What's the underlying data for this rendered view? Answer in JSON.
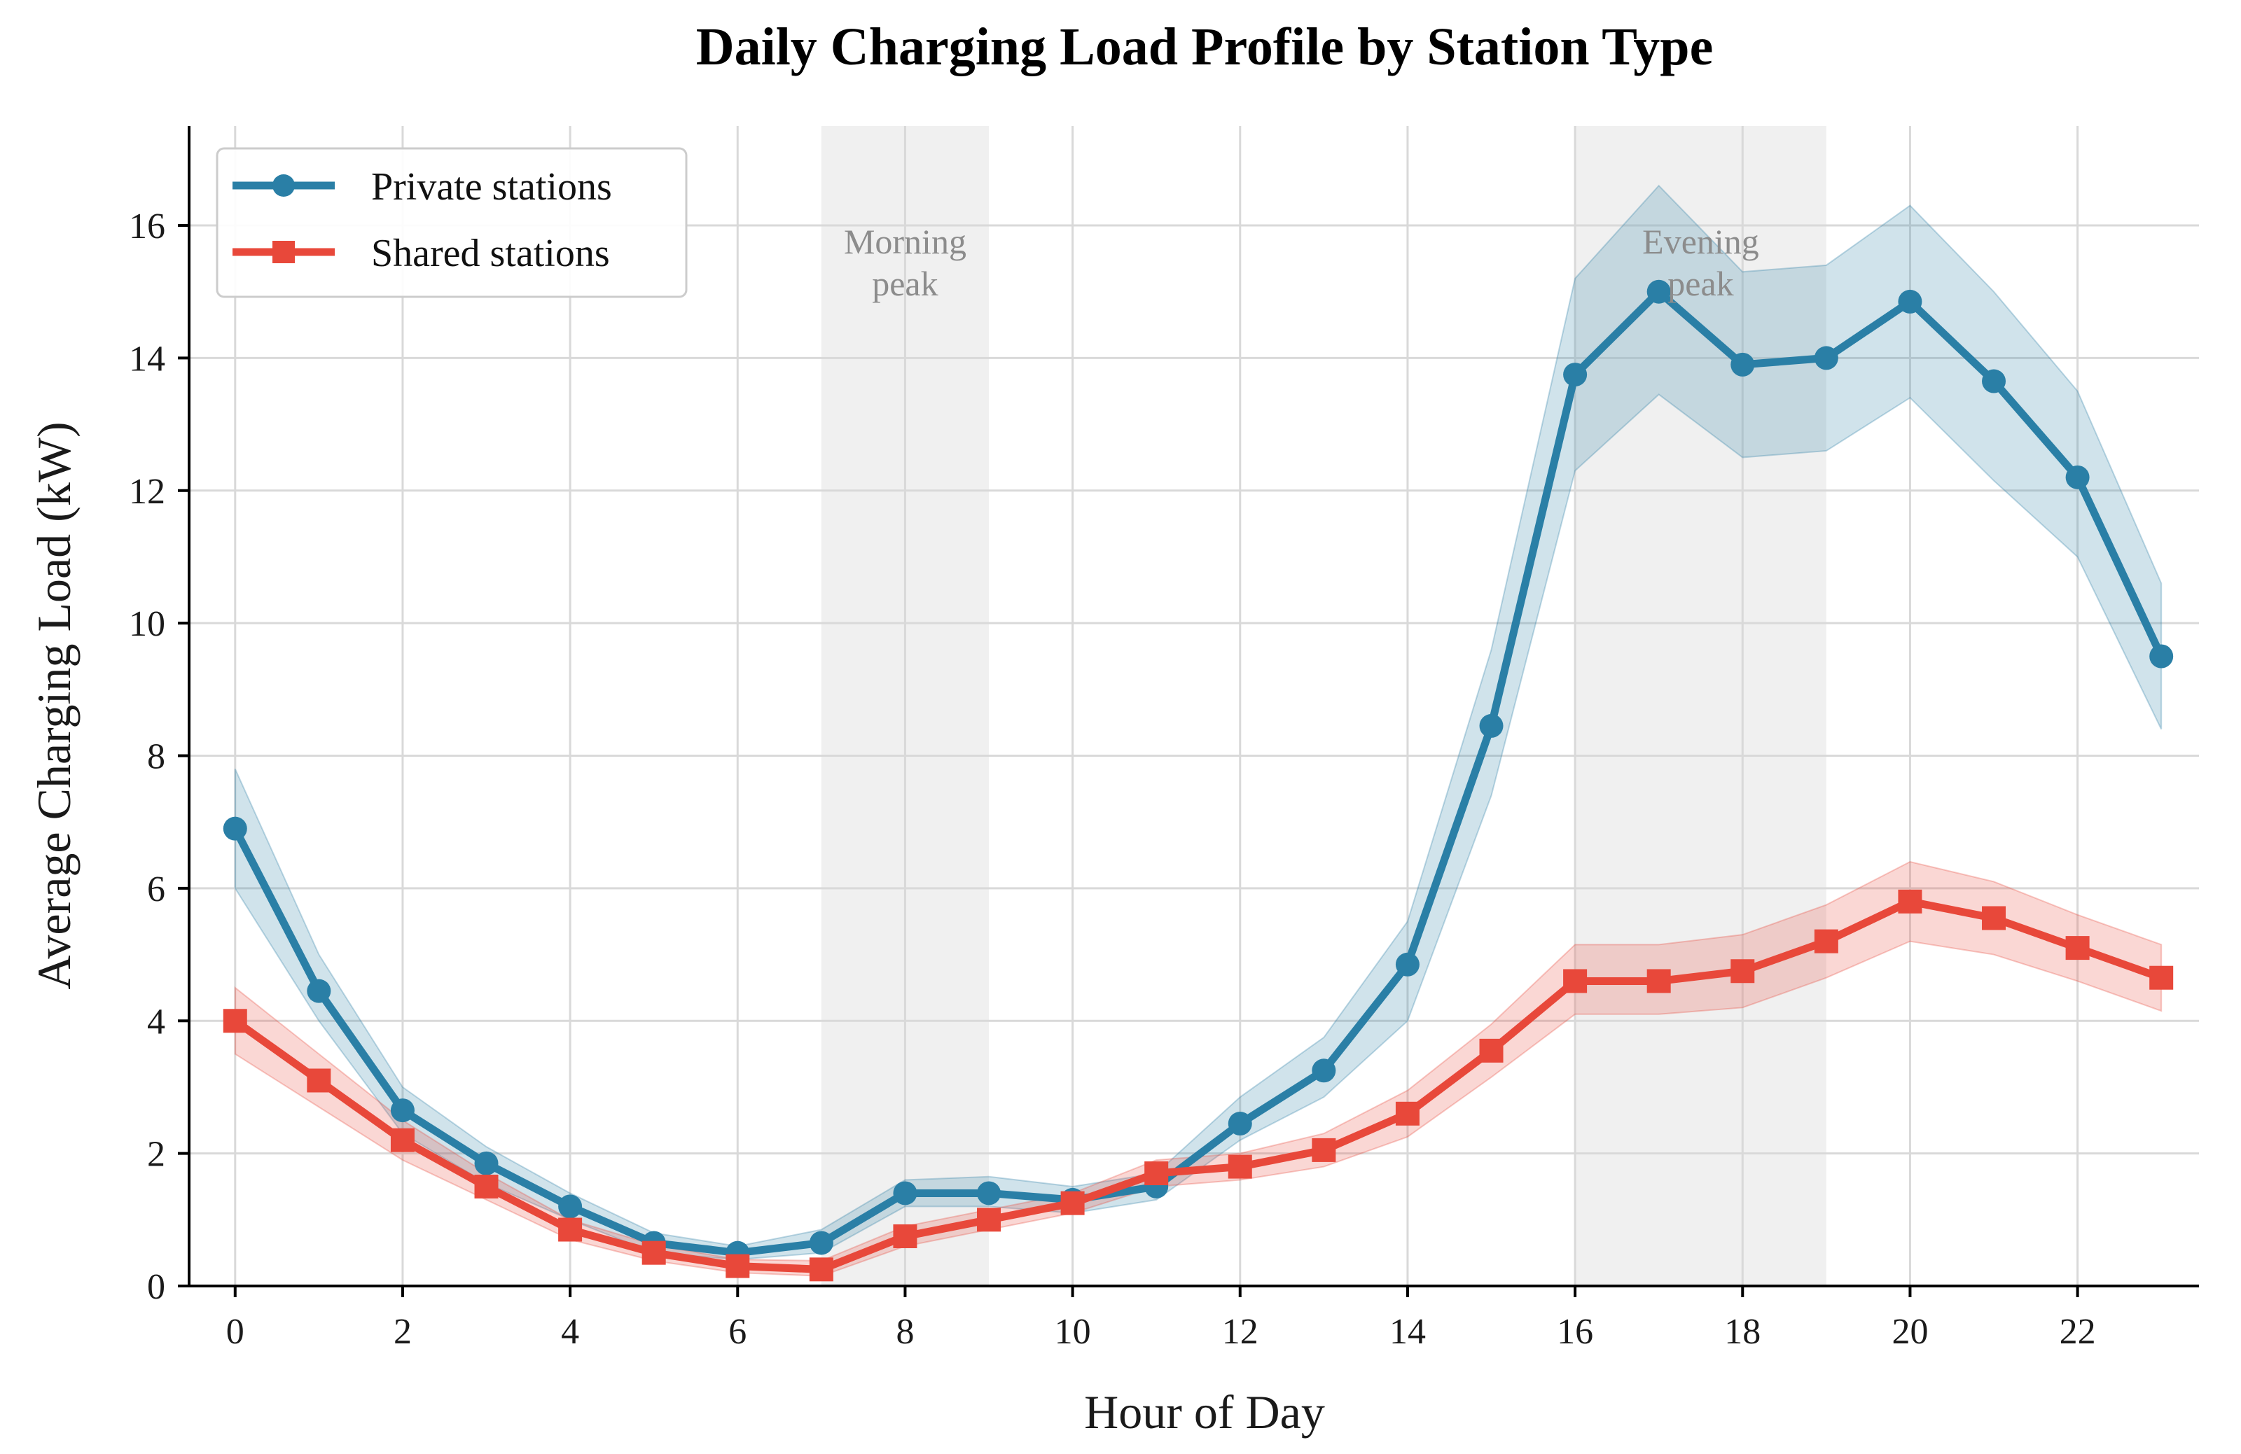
{
  "chart_data": {
    "type": "line",
    "title": "Daily Charging Load Profile by Station Type",
    "xlabel": "Hour of Day",
    "ylabel": "Average Charging Load (kW)",
    "xlim": [
      -0.55,
      23.45
    ],
    "ylim": [
      0,
      17.5
    ],
    "x_ticks": [
      "0",
      "2",
      "4",
      "6",
      "8",
      "10",
      "12",
      "14",
      "16",
      "18",
      "20",
      "22"
    ],
    "y_ticks": [
      "0",
      "2",
      "4",
      "6",
      "8",
      "10",
      "12",
      "14",
      "16"
    ],
    "grid": true,
    "legend_position": "upper-left",
    "x": [
      0,
      1,
      2,
      3,
      4,
      5,
      6,
      7,
      8,
      9,
      10,
      11,
      12,
      13,
      14,
      15,
      16,
      17,
      18,
      19,
      20,
      21,
      22,
      23
    ],
    "series": [
      {
        "name": "Private stations",
        "color": "#2a7fa6",
        "marker": "circle",
        "values": [
          6.9,
          4.45,
          2.65,
          1.85,
          1.2,
          0.65,
          0.5,
          0.65,
          1.4,
          1.4,
          1.3,
          1.5,
          2.45,
          3.25,
          4.85,
          8.45,
          13.75,
          15.0,
          13.9,
          14.0,
          14.85,
          13.65,
          12.2,
          9.5
        ],
        "band_lower": [
          6.0,
          4.0,
          2.3,
          1.55,
          1.0,
          0.5,
          0.4,
          0.5,
          1.2,
          1.2,
          1.1,
          1.3,
          2.2,
          2.85,
          4.0,
          7.4,
          12.3,
          13.45,
          12.5,
          12.6,
          13.4,
          12.15,
          11.0,
          8.4
        ],
        "band_upper": [
          7.8,
          5.0,
          3.0,
          2.1,
          1.4,
          0.8,
          0.6,
          0.85,
          1.6,
          1.65,
          1.5,
          1.7,
          2.85,
          3.75,
          5.5,
          9.6,
          15.2,
          16.6,
          15.3,
          15.4,
          16.3,
          15.0,
          13.5,
          10.6
        ]
      },
      {
        "name": "Shared stations",
        "color": "#e8483a",
        "marker": "square",
        "values": [
          4.0,
          3.1,
          2.2,
          1.5,
          0.85,
          0.5,
          0.3,
          0.25,
          0.75,
          1.0,
          1.25,
          1.7,
          1.8,
          2.05,
          2.6,
          3.55,
          4.6,
          4.6,
          4.75,
          5.2,
          5.8,
          5.55,
          5.1,
          4.65
        ],
        "band_lower": [
          3.5,
          2.7,
          1.9,
          1.3,
          0.7,
          0.38,
          0.2,
          0.15,
          0.6,
          0.85,
          1.1,
          1.5,
          1.6,
          1.8,
          2.25,
          3.15,
          4.1,
          4.1,
          4.2,
          4.65,
          5.2,
          5.0,
          4.6,
          4.15
        ],
        "band_upper": [
          4.5,
          3.5,
          2.5,
          1.7,
          1.0,
          0.62,
          0.4,
          0.38,
          0.9,
          1.15,
          1.4,
          1.9,
          2.0,
          2.3,
          2.95,
          3.95,
          5.15,
          5.15,
          5.3,
          5.75,
          6.4,
          6.1,
          5.6,
          5.15
        ]
      }
    ],
    "shaded_regions": [
      {
        "label": "Morning\npeak",
        "x_start": 7,
        "x_end": 9,
        "color": "#e6e6e6"
      },
      {
        "label": "Evening\npeak",
        "x_start": 16,
        "x_end": 19,
        "color": "#e6e6e6"
      }
    ]
  }
}
